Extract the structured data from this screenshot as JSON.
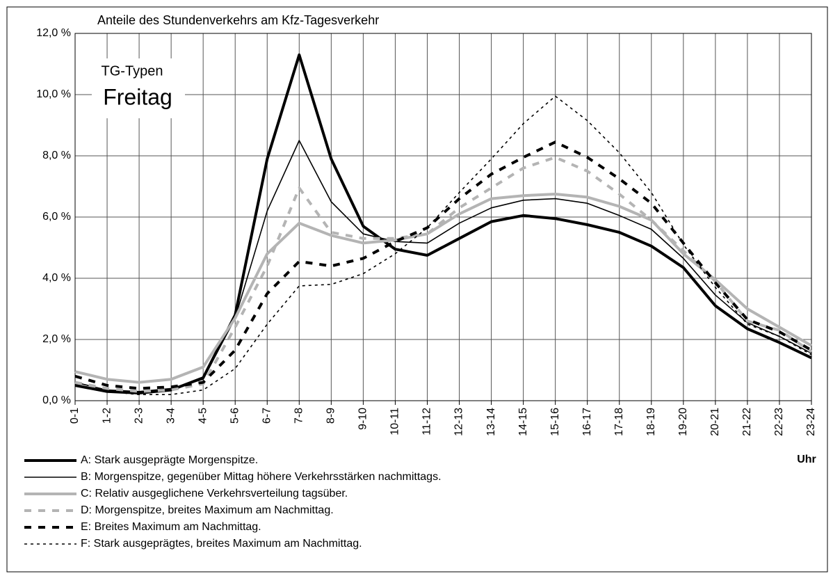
{
  "chart_data": {
    "type": "line",
    "title": "Anteile des Stundenverkehrs am Kfz-Tagesverkehr",
    "annotations": [
      "TG-Typen",
      "Freitag"
    ],
    "x_label": "Uhr",
    "categories": [
      "0-1",
      "1-2",
      "2-3",
      "3-4",
      "4-5",
      "5-6",
      "6-7",
      "7-8",
      "8-9",
      "9-10",
      "10-11",
      "11-12",
      "12-13",
      "13-14",
      "14-15",
      "15-16",
      "16-17",
      "17-18",
      "18-19",
      "19-20",
      "20-21",
      "21-22",
      "22-23",
      "23-24"
    ],
    "ylim": [
      0,
      12
    ],
    "yticks": [
      {
        "value": 0,
        "label": "0,0 %"
      },
      {
        "value": 2,
        "label": "2,0 %"
      },
      {
        "value": 4,
        "label": "4,0 %"
      },
      {
        "value": 6,
        "label": "6,0 %"
      },
      {
        "value": 8,
        "label": "8,0 %"
      },
      {
        "value": 10,
        "label": "10,0 %"
      },
      {
        "value": 12,
        "label": "12,0 %"
      }
    ],
    "grid": true,
    "series": [
      {
        "name": "A: Stark ausgeprägte Morgenspitze.",
        "color": "#000000",
        "values": [
          0.5,
          0.3,
          0.25,
          0.35,
          0.75,
          2.8,
          7.9,
          11.3,
          7.9,
          5.7,
          4.95,
          4.75,
          5.3,
          5.85,
          6.05,
          5.95,
          5.75,
          5.5,
          5.05,
          4.35,
          3.1,
          2.35,
          1.9,
          1.4
        ]
      },
      {
        "name": "B: Morgenspitze, gegenüber Mittag höhere Verkehrsstärken nachmittags.",
        "color": "#000000",
        "values": [
          0.6,
          0.35,
          0.3,
          0.4,
          0.7,
          2.7,
          6.2,
          8.5,
          6.5,
          5.45,
          5.2,
          5.15,
          5.8,
          6.3,
          6.55,
          6.6,
          6.45,
          6.05,
          5.6,
          4.65,
          3.45,
          2.55,
          2.1,
          1.55
        ]
      },
      {
        "name": "C: Relativ ausgeglichene Verkehrsverteilung tagsüber.",
        "color": "#b4b4b4",
        "values": [
          0.95,
          0.7,
          0.6,
          0.7,
          1.1,
          2.7,
          4.8,
          5.8,
          5.4,
          5.15,
          5.25,
          5.45,
          6.1,
          6.6,
          6.7,
          6.75,
          6.65,
          6.35,
          5.9,
          4.8,
          3.95,
          3.0,
          2.4,
          1.8
        ]
      },
      {
        "name": "D: Morgenspitze, breites Maximum am Nachmittag.",
        "color": "#b4b4b4",
        "values": [
          0.6,
          0.4,
          0.3,
          0.35,
          0.55,
          2.4,
          4.4,
          6.95,
          5.5,
          5.3,
          5.3,
          5.45,
          6.3,
          6.95,
          7.6,
          7.95,
          7.5,
          6.75,
          5.9,
          4.9,
          3.9,
          2.6,
          2.3,
          1.6
        ]
      },
      {
        "name": "E: Breites Maximum am Nachmittag.",
        "color": "#000000",
        "values": [
          0.8,
          0.5,
          0.4,
          0.45,
          0.6,
          1.65,
          3.5,
          4.55,
          4.4,
          4.65,
          5.2,
          5.65,
          6.6,
          7.4,
          7.95,
          8.45,
          7.95,
          7.25,
          6.45,
          5.15,
          3.85,
          2.65,
          2.25,
          1.65
        ]
      },
      {
        "name": "F: Stark ausgeprägtes, breites Maximum am Nachmittag.",
        "color": "#000000",
        "values": [
          0.5,
          0.3,
          0.2,
          0.2,
          0.35,
          1.05,
          2.5,
          3.75,
          3.8,
          4.15,
          4.8,
          5.65,
          6.8,
          7.9,
          9.05,
          9.95,
          9.15,
          8.1,
          6.8,
          5.1,
          3.7,
          2.5,
          2.1,
          1.5
        ]
      }
    ]
  }
}
